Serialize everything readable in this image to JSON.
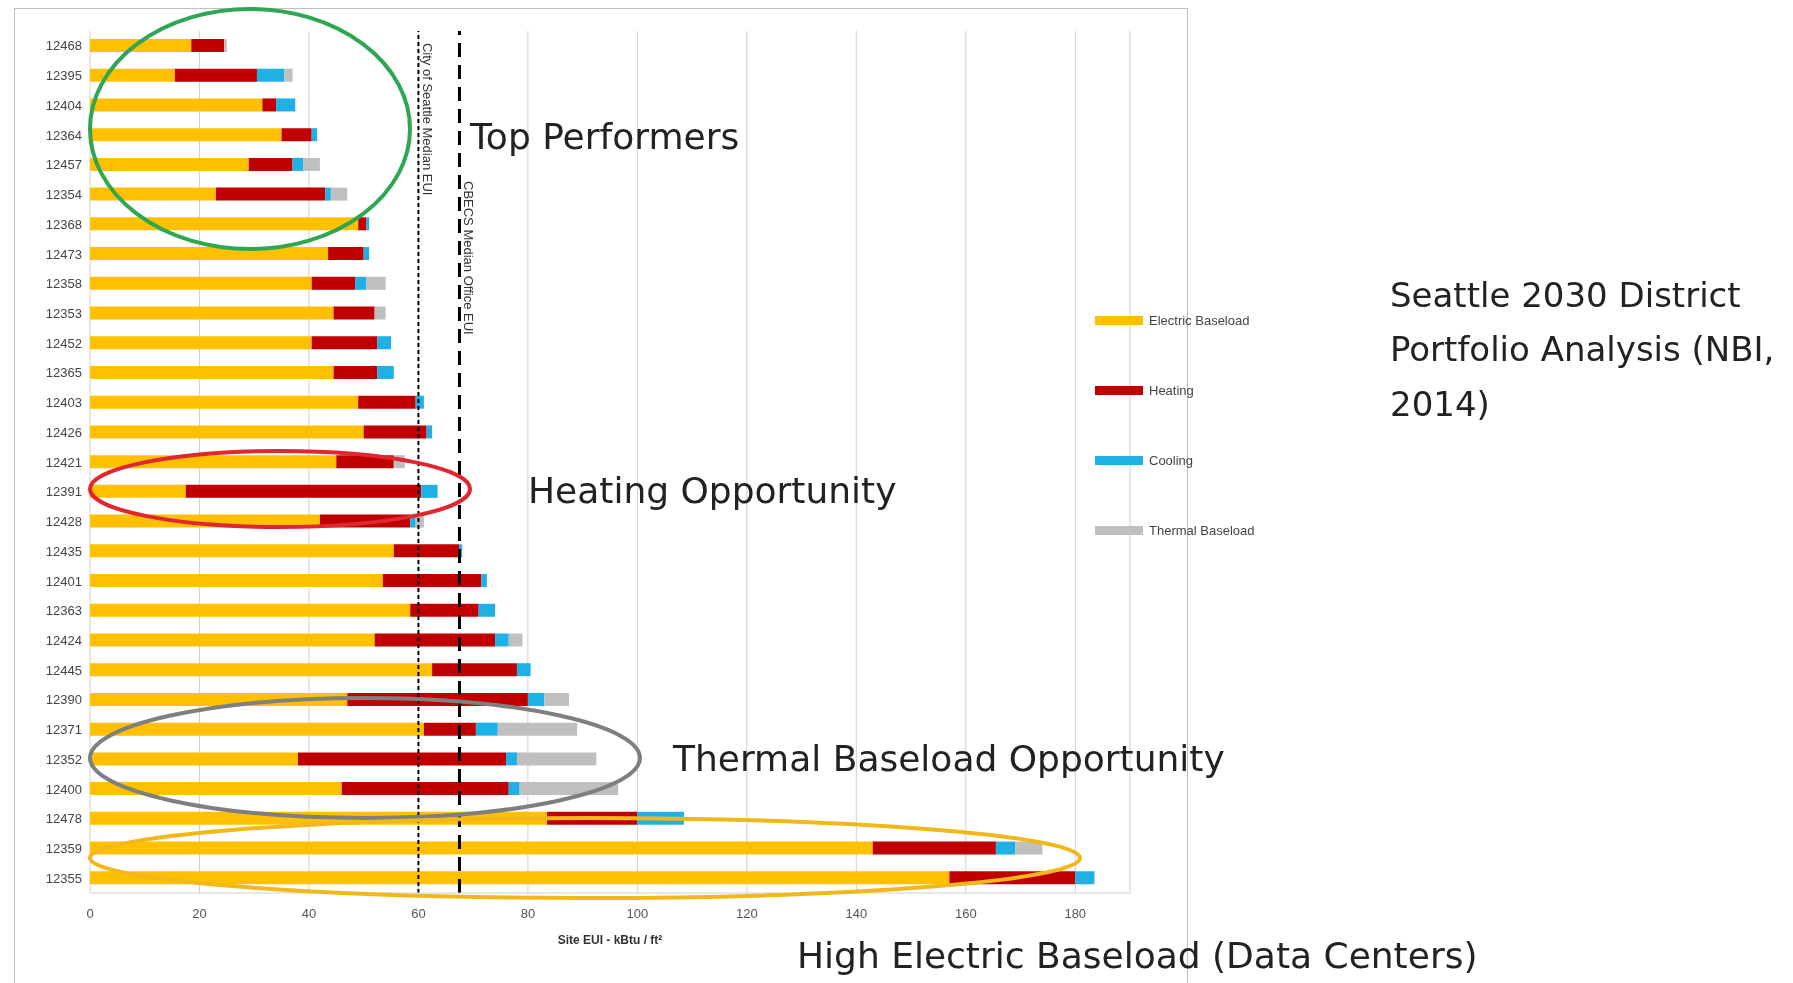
{
  "chart_data": {
    "type": "bar",
    "orientation": "horizontal",
    "stacked": true,
    "categories": [
      "12468",
      "12395",
      "12404",
      "12364",
      "12457",
      "12354",
      "12368",
      "12473",
      "12358",
      "12353",
      "12452",
      "12365",
      "12403",
      "12426",
      "12421",
      "12391",
      "12428",
      "12435",
      "12401",
      "12363",
      "12424",
      "12445",
      "12390",
      "12371",
      "12352",
      "12400",
      "12478",
      "12359",
      "12355"
    ],
    "series": [
      {
        "name": "Electric Baseload",
        "color": "#ffc000",
        "values": [
          18.5,
          15.5,
          31.5,
          35,
          29,
          23,
          49,
          43.5,
          40.5,
          44.5,
          40.5,
          44.5,
          49,
          50,
          45,
          17.5,
          42,
          55.5,
          53.5,
          58.5,
          52,
          62.5,
          47,
          61,
          38,
          46,
          83.5,
          143,
          157
        ]
      },
      {
        "name": "Heating",
        "color": "#c00000",
        "values": [
          6,
          15,
          2.5,
          5.5,
          8,
          20,
          1.5,
          6.5,
          8,
          7.5,
          12,
          8,
          10.5,
          11.5,
          10.5,
          43,
          16.5,
          12,
          18,
          12.5,
          22,
          15.5,
          33,
          9.5,
          38,
          30.5,
          16.5,
          22.5,
          23
        ]
      },
      {
        "name": "Cooling",
        "color": "#1fb1e6",
        "values": [
          0,
          5,
          3.5,
          1,
          2,
          1,
          0.5,
          1,
          2,
          0,
          2.5,
          3,
          1.5,
          1,
          0,
          3,
          1,
          0.5,
          1,
          3,
          2.5,
          2.5,
          3,
          4,
          2,
          2,
          8.5,
          3.5,
          3.5
        ]
      },
      {
        "name": "Thermal Baseload",
        "color": "#bfbfbf",
        "values": [
          0.5,
          1.5,
          0,
          0,
          3,
          3,
          0,
          0,
          3.5,
          2,
          0,
          0,
          0,
          0,
          2,
          0,
          1.5,
          0,
          0,
          0,
          2.5,
          0,
          4.5,
          14.5,
          14.5,
          18,
          0,
          5,
          0
        ]
      }
    ],
    "xlim": [
      0,
      190
    ],
    "xticks": [
      0,
      20,
      40,
      60,
      80,
      100,
      120,
      140,
      160,
      180
    ],
    "xlabel": "Site EUI - kBtu / ft²",
    "grid": "x",
    "legend": "right",
    "ref_lines": [
      {
        "axis": "x",
        "value": 60,
        "label": "City of Seattle Median EUI",
        "color": "#000000",
        "line_style": "dotted"
      },
      {
        "axis": "x",
        "value": 67.5,
        "label": "CBECS Median Office EUI",
        "color": "#000000",
        "line_style": "dashed"
      }
    ],
    "annotations": [
      "Top Performers",
      "Heating Opportunity",
      "Thermal Baseload Opportunity",
      "High Electric Baseload (Data Centers)",
      "Seattle 2030 District Portfolio Analysis (NBI, 2014)"
    ]
  }
}
